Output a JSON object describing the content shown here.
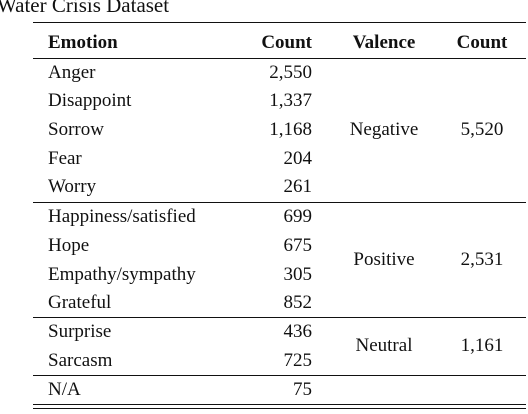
{
  "caption": "Water Crisis Dataset",
  "headers": {
    "emotion": "Emotion",
    "count": "Count",
    "valence": "Valence",
    "valence_count": "Count"
  },
  "groups": [
    {
      "valence": "Negative",
      "total": "5,520",
      "rows": [
        {
          "emotion": "Anger",
          "count": "2,550"
        },
        {
          "emotion": "Disappoint",
          "count": "1,337"
        },
        {
          "emotion": "Sorrow",
          "count": "1,168"
        },
        {
          "emotion": "Fear",
          "count": "204"
        },
        {
          "emotion": "Worry",
          "count": "261"
        }
      ]
    },
    {
      "valence": "Positive",
      "total": "2,531",
      "rows": [
        {
          "emotion": "Happiness/satisfied",
          "count": "699"
        },
        {
          "emotion": "Hope",
          "count": "675"
        },
        {
          "emotion": "Empathy/sympathy",
          "count": "305"
        },
        {
          "emotion": "Grateful",
          "count": "852"
        }
      ]
    },
    {
      "valence": "Neutral",
      "total": "1,161",
      "rows": [
        {
          "emotion": "Surprise",
          "count": "436"
        },
        {
          "emotion": "Sarcasm",
          "count": "725"
        }
      ]
    },
    {
      "valence": "",
      "total": "",
      "rows": [
        {
          "emotion": "N/A",
          "count": "75"
        }
      ]
    }
  ]
}
